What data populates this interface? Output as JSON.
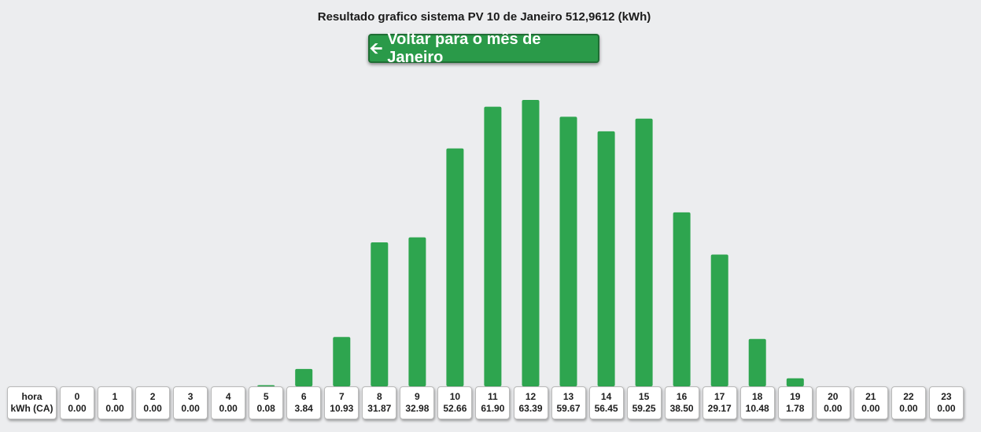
{
  "page": {
    "title": "Resultado grafico sistema PV 10 de Janeiro 512,9612 (kWh)",
    "back_label": "Voltar para o mês de Janeiro",
    "back_icon": "arrow-left-icon",
    "header_hour": "hora",
    "header_value": "kWh (CA)"
  },
  "colors": {
    "bar": "#2ea54f",
    "button": "#2a9a49",
    "background": "#ecedef"
  },
  "chart_data": {
    "type": "bar",
    "categories": [
      "0",
      "1",
      "2",
      "3",
      "4",
      "5",
      "6",
      "7",
      "8",
      "9",
      "10",
      "11",
      "12",
      "13",
      "14",
      "15",
      "16",
      "17",
      "18",
      "19",
      "20",
      "21",
      "22",
      "23"
    ],
    "values": [
      0.0,
      0.0,
      0.0,
      0.0,
      0.0,
      0.08,
      3.84,
      10.93,
      31.87,
      32.98,
      52.66,
      61.9,
      63.39,
      59.67,
      56.45,
      59.25,
      38.5,
      29.17,
      10.48,
      1.78,
      0.0,
      0.0,
      0.0,
      0.0
    ],
    "value_labels": [
      "0.00",
      "0.00",
      "0.00",
      "0.00",
      "0.00",
      "0.08",
      "3.84",
      "10.93",
      "31.87",
      "32.98",
      "52.66",
      "61.90",
      "63.39",
      "59.67",
      "56.45",
      "59.25",
      "38.50",
      "29.17",
      "10.48",
      "1.78",
      "0.00",
      "0.00",
      "0.00",
      "0.00"
    ],
    "title": "Resultado grafico sistema PV 10 de Janeiro 512,9612 (kWh)",
    "xlabel": "hora",
    "ylabel": "kWh (CA)",
    "ylim": [
      0,
      63.39
    ],
    "grid": false
  }
}
